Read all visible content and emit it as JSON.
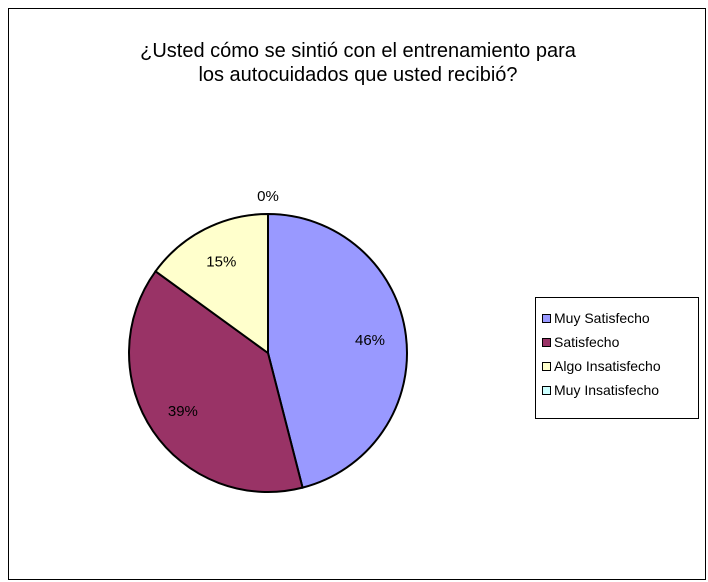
{
  "chart_data": {
    "type": "pie",
    "title_lines": [
      "¿Usted cómo se sintió con el entrenamiento para",
      "los autocuidados que usted recibió?"
    ],
    "categories": [
      "Muy Satisfecho",
      "Satisfecho",
      "Algo Insatisfecho",
      "Muy Insatisfecho"
    ],
    "values": [
      46,
      39,
      15,
      0
    ],
    "data_labels": [
      "46%",
      "39%",
      "15%",
      "0%"
    ],
    "colors": [
      "#9999ff",
      "#993366",
      "#ffffcc",
      "#ccffff"
    ],
    "legend_position": "right"
  }
}
